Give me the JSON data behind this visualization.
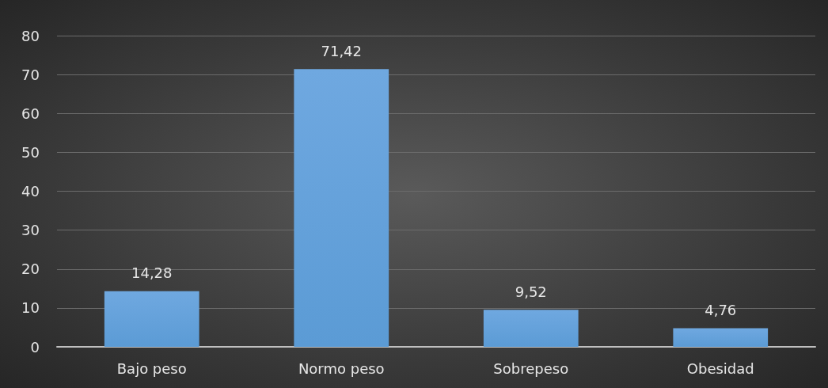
{
  "chart_data": {
    "type": "bar",
    "categories": [
      "Bajo peso",
      "Normo peso",
      "Sobrepeso",
      "Obesidad"
    ],
    "values": [
      14.28,
      71.42,
      9.52,
      4.76
    ],
    "value_labels": [
      "14,28",
      "71,42",
      "9,52",
      "4,76"
    ],
    "color": "#5b9bd5",
    "ylim": [
      0,
      80
    ],
    "yticks": [
      0,
      10,
      20,
      30,
      40,
      50,
      60,
      70,
      80
    ],
    "grid": "y"
  }
}
